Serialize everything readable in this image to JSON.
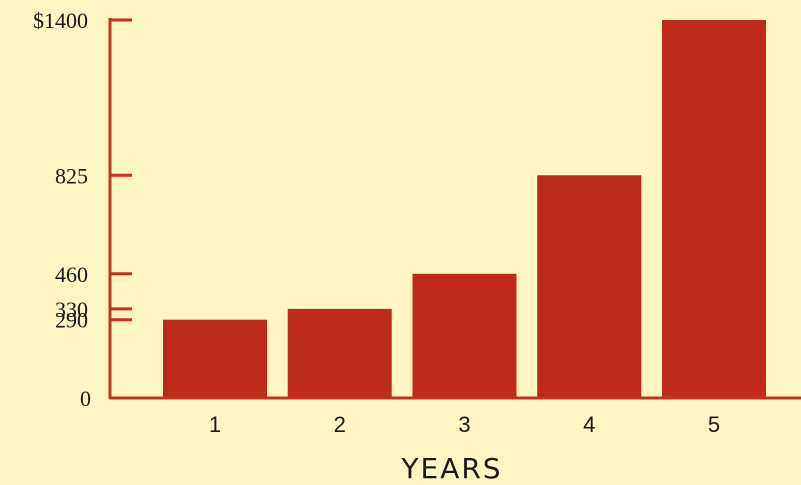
{
  "chart_data": {
    "type": "bar",
    "categories": [
      "1",
      "2",
      "3",
      "4",
      "5"
    ],
    "values": [
      290,
      330,
      460,
      825,
      1400
    ],
    "title": "",
    "xlabel": "YEARS",
    "ylabel": "",
    "ylim": [
      0,
      1400
    ],
    "yticks": [
      0,
      290,
      330,
      460,
      825,
      1400
    ],
    "ytick_labels": [
      "0",
      "290",
      "330",
      "460",
      "825",
      "$1400"
    ],
    "grid": false,
    "bar_color": "#be2b19",
    "axis_color": "#c83020",
    "background_color": "#fdf6c0"
  }
}
